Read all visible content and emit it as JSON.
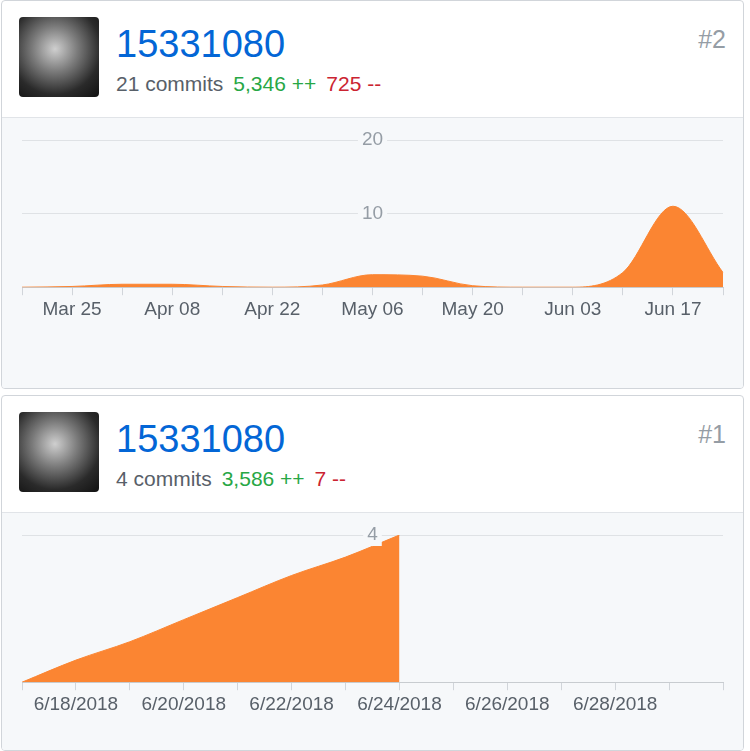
{
  "cards": [
    {
      "user": "15331080",
      "rank": "#2",
      "commits": "21 commits",
      "additions": "5,346 ++",
      "deletions": "725 --"
    },
    {
      "user": "15331080",
      "rank": "#1",
      "commits": "4 commits",
      "additions": "3,586 ++",
      "deletions": "7 --"
    }
  ],
  "chart_data": [
    {
      "type": "area",
      "color": "#fb8532",
      "grid": true,
      "categories": [
        null,
        "Mar 25",
        null,
        "Apr 08",
        null,
        "Apr 22",
        null,
        "May 06",
        null,
        "May 20",
        null,
        "Jun 03",
        null,
        "Jun 17",
        null
      ],
      "values": [
        0,
        0.1,
        0.4,
        0.4,
        0.1,
        0,
        0.3,
        1.7,
        1.5,
        0.2,
        0,
        0,
        2,
        11,
        2
      ],
      "ylim": [
        0,
        20
      ],
      "yticks": [
        10,
        20
      ]
    },
    {
      "type": "area",
      "color": "#fb8532",
      "grid": true,
      "categories": [
        null,
        "6/18/2018",
        null,
        "6/20/2018",
        null,
        "6/22/2018",
        null,
        "6/24/2018",
        null,
        "6/26/2018",
        null,
        "6/28/2018",
        null,
        null
      ],
      "values": [
        0,
        0.6,
        1.1,
        1.7,
        2.3,
        2.9,
        3.4,
        4,
        null,
        null,
        null,
        null,
        null,
        null
      ],
      "ylim": [
        0,
        4
      ],
      "yticks": [
        4
      ]
    }
  ]
}
